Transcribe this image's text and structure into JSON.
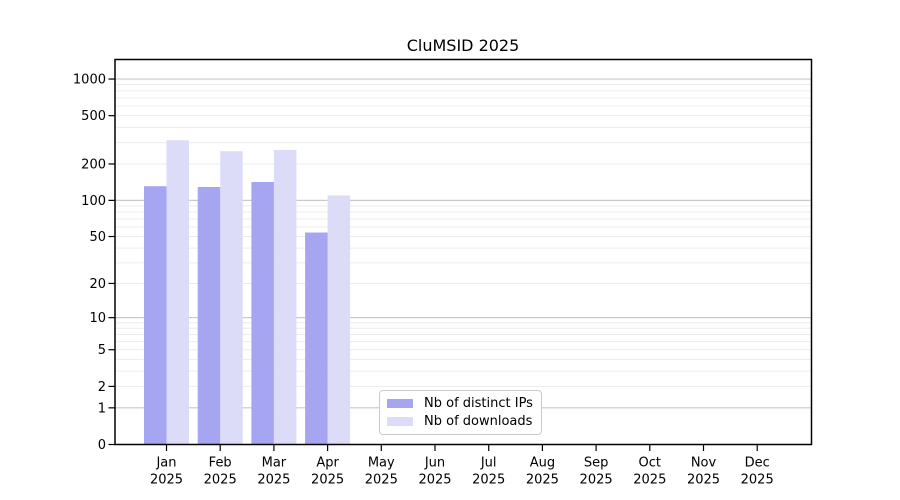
{
  "chart_data": {
    "type": "bar",
    "title": "CluMSID 2025",
    "year": "2025",
    "months": [
      "Jan",
      "Feb",
      "Mar",
      "Apr",
      "May",
      "Jun",
      "Jul",
      "Aug",
      "Sep",
      "Oct",
      "Nov",
      "Dec"
    ],
    "series": [
      {
        "name": "Nb of distinct IPs",
        "color": "#a5a5f2",
        "values": [
          131,
          129,
          142,
          54,
          null,
          null,
          null,
          null,
          null,
          null,
          null,
          null
        ]
      },
      {
        "name": "Nb of downloads",
        "color": "#dcdcf8",
        "values": [
          314,
          255,
          261,
          110,
          null,
          null,
          null,
          null,
          null,
          null,
          null,
          null
        ]
      }
    ],
    "y_scale": "log1p",
    "y_ticks": [
      0,
      1,
      2,
      5,
      10,
      20,
      50,
      100,
      200,
      500,
      1000
    ],
    "ylim": [
      0,
      1380
    ],
    "grid": "horizontal",
    "legend_position": "inside-bottom-center",
    "colors": {
      "grid_minor": "#ececec",
      "grid_major": "#c9c9c9",
      "axis": "#000000",
      "background": "#ffffff",
      "text": "#000000"
    }
  }
}
